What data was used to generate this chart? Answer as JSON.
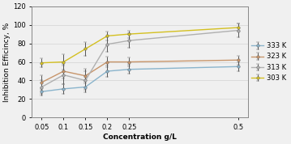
{
  "x": [
    0.05,
    0.1,
    0.15,
    0.2,
    0.25,
    0.5
  ],
  "series": {
    "333 K": {
      "y": [
        28,
        31,
        33,
        50,
        52,
        55
      ],
      "yerr": [
        4,
        5,
        6,
        6,
        5,
        5
      ],
      "color": "#8ab4cc",
      "linewidth": 1.0,
      "markersize": 2.5
    },
    "323 K": {
      "y": [
        38,
        50,
        45,
        60,
        60,
        62
      ],
      "yerr": [
        8,
        8,
        8,
        6,
        5,
        5
      ],
      "color": "#c8956a",
      "linewidth": 1.0,
      "markersize": 2.5
    },
    "313 K": {
      "y": [
        33,
        46,
        40,
        79,
        83,
        94
      ],
      "yerr": [
        7,
        10,
        10,
        8,
        8,
        7
      ],
      "color": "#b0b0b0",
      "linewidth": 1.0,
      "markersize": 2.5
    },
    "303 K": {
      "y": [
        59,
        60,
        74,
        88,
        90,
        97
      ],
      "yerr": [
        5,
        8,
        7,
        5,
        4,
        4
      ],
      "color": "#d4c020",
      "linewidth": 1.0,
      "markersize": 2.5
    }
  },
  "xlabel": "Concentration g/L",
  "ylabel": "Inhibition Efficincy, %",
  "ylim": [
    0,
    120
  ],
  "yticks": [
    0,
    20,
    40,
    60,
    80,
    100,
    120
  ],
  "xticks": [
    0.05,
    0.1,
    0.15,
    0.2,
    0.25,
    0.5
  ],
  "xtick_labels": [
    "0.05",
    "0.1",
    "0.15",
    "0.2",
    "0.25",
    "0.5"
  ],
  "legend_order": [
    "333 K",
    "323 K",
    "313 K",
    "303 K"
  ],
  "background_color": "#f0f0f0",
  "plot_bg_color": "#f0f0f0",
  "grid_color": "#d8d8d8",
  "axis_fontsize": 6.5,
  "tick_fontsize": 6,
  "legend_fontsize": 6
}
